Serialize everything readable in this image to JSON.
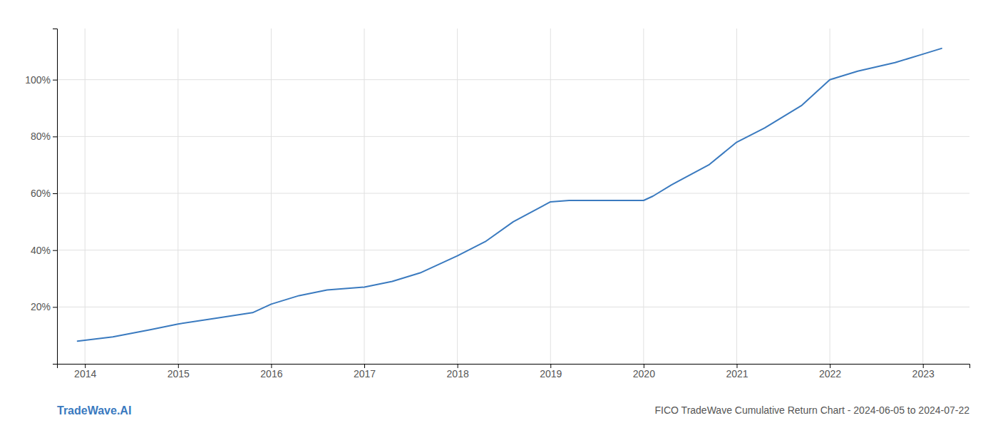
{
  "chart_data": {
    "type": "line",
    "title": "FICO TradeWave Cumulative Return Chart - 2024-06-05 to 2024-07-22",
    "annotations": [
      "TradeWave.AI"
    ],
    "x": [
      2013.92,
      2014.3,
      2014.7,
      2015.0,
      2015.4,
      2015.8,
      2016.0,
      2016.3,
      2016.6,
      2017.0,
      2017.3,
      2017.6,
      2018.0,
      2018.3,
      2018.6,
      2019.0,
      2019.2,
      2019.5,
      2019.8,
      2020.0,
      2020.1,
      2020.3,
      2020.7,
      2021.0,
      2021.3,
      2021.7,
      2022.0,
      2022.3,
      2022.7,
      2023.0,
      2023.2
    ],
    "values": [
      8,
      9.5,
      12,
      14,
      16,
      18,
      21,
      24,
      26,
      27,
      29,
      32,
      38,
      43,
      50,
      57,
      57.5,
      57.5,
      57.5,
      57.5,
      59,
      63,
      70,
      78,
      83,
      91,
      100,
      103,
      106,
      109,
      111
    ],
    "color": "#3a7abf",
    "xlim": [
      2013.7,
      2023.5
    ],
    "xticks": [
      2014,
      2015,
      2016,
      2017,
      2018,
      2019,
      2020,
      2021,
      2022,
      2023
    ],
    "ylim": [
      0,
      118
    ],
    "yticks": [
      {
        "value": 20,
        "label": "20%"
      },
      {
        "value": 40,
        "label": "40%"
      },
      {
        "value": 60,
        "label": "60%"
      },
      {
        "value": 80,
        "label": "80%"
      },
      {
        "value": 100,
        "label": "100%"
      }
    ],
    "grid": true
  }
}
